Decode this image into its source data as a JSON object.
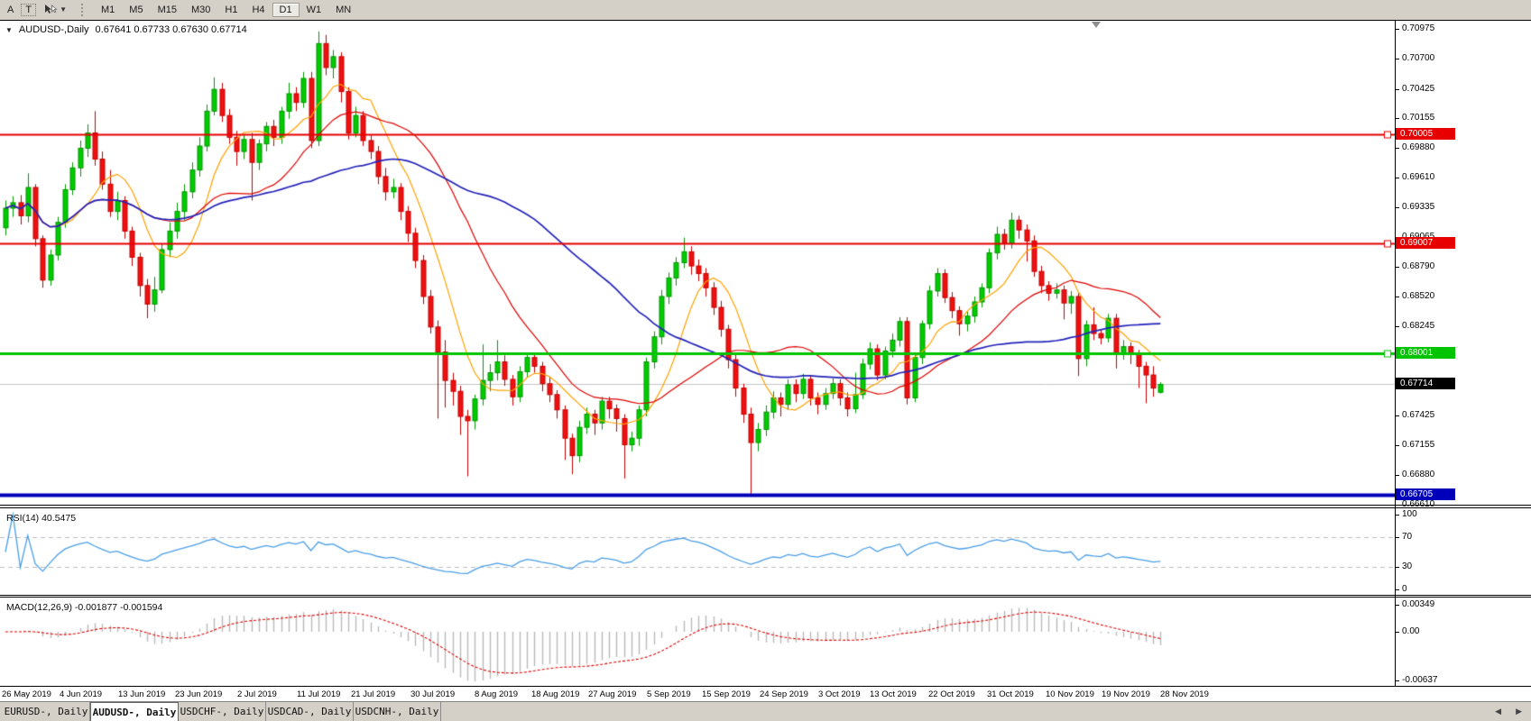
{
  "toolbar": {
    "arrow_tool_label": "A",
    "text_tool_label": "T",
    "timeframes": [
      "M1",
      "M5",
      "M15",
      "M30",
      "H1",
      "H4",
      "D1",
      "W1",
      "MN"
    ],
    "active_timeframe": "D1"
  },
  "chart": {
    "title": "AUDUSD-,Daily",
    "ohlc_text": "0.67641 0.67733 0.67630 0.67714",
    "price_axis_labels": [
      "0.70975",
      "0.70700",
      "0.70425",
      "0.70155",
      "0.69880",
      "0.69610",
      "0.69335",
      "0.69065",
      "0.68790",
      "0.68520",
      "0.68245",
      "0.67975",
      "0.67700",
      "0.67425",
      "0.67155",
      "0.66880",
      "0.66610"
    ],
    "date_labels": [
      "26 May 2019",
      "4 Jun 2019",
      "13 Jun 2019",
      "23 Jun 2019",
      "2 Jul 2019",
      "11 Jul 2019",
      "21 Jul 2019",
      "30 Jul 2019",
      "8 Aug 2019",
      "18 Aug 2019",
      "27 Aug 2019",
      "5 Sep 2019",
      "15 Sep 2019",
      "24 Sep 2019",
      "3 Oct 2019",
      "13 Oct 2019",
      "22 Oct 2019",
      "31 Oct 2019",
      "10 Nov 2019",
      "19 Nov 2019",
      "28 Nov 2019"
    ],
    "price_line_tags": [
      {
        "label": "0.70005",
        "price": 0.70005,
        "color": "#e60000",
        "text_color": "#ffffff",
        "line_width": 2
      },
      {
        "label": "0.69007",
        "price": 0.69007,
        "color": "#e60000",
        "text_color": "#ffffff",
        "line_width": 2
      },
      {
        "label": "0.68001",
        "price": 0.68001,
        "color": "#00c400",
        "text_color": "#ffffff",
        "line_width": 3
      },
      {
        "label": "0.66705",
        "price": 0.66705,
        "color": "#0000bb",
        "text_color": "#ffffff",
        "line_width": 4
      }
    ],
    "current_price_tag": {
      "label": "0.67714",
      "price": 0.67714,
      "color": "#000000",
      "text_color": "#ffffff"
    }
  },
  "rsi_panel": {
    "label": "RSI(14) 40.5475",
    "value": 40.5475,
    "line_color": "#4a9ee8",
    "axis_labels": [
      {
        "label": "100",
        "value": 100
      },
      {
        "label": "70",
        "value": 70
      },
      {
        "label": "30",
        "value": 30
      },
      {
        "label": "0",
        "value": 0
      }
    ]
  },
  "macd_panel": {
    "label": "MACD(12,26,9) -0.001877 -0.001594",
    "values": [
      -0.001877,
      -0.001594
    ],
    "histogram_color": "#b9b9b9",
    "signal_color": "#e00000",
    "axis_labels": [
      {
        "label": "0.00349",
        "value": 0.00349
      },
      {
        "label": "0.00",
        "value": 0
      },
      {
        "label": "-0.00637",
        "value": -0.00637
      }
    ]
  },
  "tabs": [
    {
      "label": "EURUSD-, Daily",
      "active": false
    },
    {
      "label": "AUDUSD-, Daily",
      "active": true
    },
    {
      "label": "USDCHF-, Daily",
      "active": false
    },
    {
      "label": "USDCAD-, Daily",
      "active": false
    },
    {
      "label": "USDCNH-, Daily",
      "active": false
    }
  ],
  "tab_arrows": {
    "left": "◀",
    "right": "▶"
  },
  "chart_data": {
    "type": "candlestick",
    "symbol": "AUDUSD",
    "timeframe": "Daily",
    "title": "AUDUSD-,Daily",
    "last_bar_ohlc": [
      0.67641,
      0.67733,
      0.6763,
      0.67714
    ],
    "ylim": [
      0.6661,
      0.70975
    ],
    "x_tick_dates": [
      "26 May 2019",
      "4 Jun 2019",
      "13 Jun 2019",
      "23 Jun 2019",
      "2 Jul 2019",
      "11 Jul 2019",
      "21 Jul 2019",
      "30 Jul 2019",
      "8 Aug 2019",
      "18 Aug 2019",
      "27 Aug 2019",
      "5 Sep 2019",
      "15 Sep 2019",
      "24 Sep 2019",
      "3 Oct 2019",
      "13 Oct 2019",
      "22 Oct 2019",
      "31 Oct 2019",
      "10 Nov 2019",
      "19 Nov 2019",
      "28 Nov 2019"
    ],
    "horizontal_levels": [
      0.70005,
      0.69007,
      0.68001,
      0.66705
    ],
    "current_price": 0.67714,
    "bull_color": "#00cc00",
    "bear_color": "#ee1111",
    "overlays": [
      {
        "name": "fast-ma",
        "period": 8,
        "color": "#ffa200"
      },
      {
        "name": "mid-ma",
        "period": 21,
        "color": "#e00000"
      },
      {
        "name": "slow-ma",
        "period": 45,
        "color": "#2323bb"
      }
    ],
    "indicators": [
      {
        "name": "RSI",
        "period": 14,
        "display_value": 40.5475,
        "levels": [
          30,
          70
        ],
        "range": [
          0,
          100
        ]
      },
      {
        "name": "MACD",
        "fast": 12,
        "slow": 26,
        "signal": 9,
        "display_values": [
          -0.001877,
          -0.001594
        ],
        "range": [
          -0.00637,
          0.00349
        ]
      }
    ],
    "candles": [
      [
        0.6915,
        0.694,
        0.6908,
        0.6933
      ],
      [
        0.6933,
        0.6944,
        0.6925,
        0.6938
      ],
      [
        0.6938,
        0.6945,
        0.6918,
        0.6926
      ],
      [
        0.6926,
        0.6965,
        0.692,
        0.6952
      ],
      [
        0.6952,
        0.6955,
        0.6898,
        0.6905
      ],
      [
        0.6905,
        0.6908,
        0.686,
        0.6867
      ],
      [
        0.6867,
        0.6895,
        0.6862,
        0.689
      ],
      [
        0.689,
        0.6925,
        0.6885,
        0.692
      ],
      [
        0.692,
        0.6955,
        0.6915,
        0.695
      ],
      [
        0.695,
        0.6975,
        0.6945,
        0.697
      ],
      [
        0.697,
        0.6995,
        0.6962,
        0.6988
      ],
      [
        0.6988,
        0.701,
        0.698,
        0.7002
      ],
      [
        0.7002,
        0.7022,
        0.6972,
        0.6978
      ],
      [
        0.6978,
        0.6985,
        0.695,
        0.6955
      ],
      [
        0.6955,
        0.6968,
        0.6925,
        0.693
      ],
      [
        0.693,
        0.6948,
        0.6922,
        0.694
      ],
      [
        0.694,
        0.6944,
        0.6905,
        0.6912
      ],
      [
        0.6912,
        0.6916,
        0.688,
        0.6888
      ],
      [
        0.6888,
        0.6892,
        0.6852,
        0.6862
      ],
      [
        0.6862,
        0.6868,
        0.6832,
        0.6845
      ],
      [
        0.6845,
        0.687,
        0.6838,
        0.6858
      ],
      [
        0.6858,
        0.69,
        0.6855,
        0.6895
      ],
      [
        0.6895,
        0.692,
        0.6888,
        0.6912
      ],
      [
        0.6912,
        0.6938,
        0.6905,
        0.693
      ],
      [
        0.693,
        0.6955,
        0.6922,
        0.6948
      ],
      [
        0.6948,
        0.6975,
        0.6942,
        0.6968
      ],
      [
        0.6968,
        0.6998,
        0.6962,
        0.699
      ],
      [
        0.699,
        0.7028,
        0.6985,
        0.7022
      ],
      [
        0.7022,
        0.7053,
        0.7018,
        0.7042
      ],
      [
        0.7042,
        0.7048,
        0.7012,
        0.7018
      ],
      [
        0.7018,
        0.7024,
        0.6992,
        0.6998
      ],
      [
        0.6998,
        0.7004,
        0.6972,
        0.6985
      ],
      [
        0.6985,
        0.7,
        0.6978,
        0.6996
      ],
      [
        0.6996,
        0.7002,
        0.694,
        0.6975
      ],
      [
        0.6975,
        0.6996,
        0.6968,
        0.6992
      ],
      [
        0.6992,
        0.7012,
        0.6985,
        0.7008
      ],
      [
        0.7008,
        0.7014,
        0.699,
        0.6998
      ],
      [
        0.6998,
        0.7026,
        0.6992,
        0.7022
      ],
      [
        0.7022,
        0.7048,
        0.7015,
        0.7038
      ],
      [
        0.7038,
        0.7044,
        0.7022,
        0.703
      ],
      [
        0.703,
        0.7058,
        0.7025,
        0.7052
      ],
      [
        0.7052,
        0.7058,
        0.6988,
        0.6995
      ],
      [
        0.6995,
        0.7095,
        0.699,
        0.7084
      ],
      [
        0.7084,
        0.7092,
        0.7055,
        0.7062
      ],
      [
        0.7062,
        0.7078,
        0.7052,
        0.7072
      ],
      [
        0.7072,
        0.7076,
        0.703,
        0.704
      ],
      [
        0.704,
        0.7044,
        0.6996,
        0.7002
      ],
      [
        0.7002,
        0.7026,
        0.6998,
        0.7018
      ],
      [
        0.7018,
        0.7022,
        0.699,
        0.6995
      ],
      [
        0.6995,
        0.7,
        0.6978,
        0.6985
      ],
      [
        0.6985,
        0.699,
        0.6955,
        0.6962
      ],
      [
        0.6962,
        0.697,
        0.694,
        0.6948
      ],
      [
        0.6948,
        0.696,
        0.6942,
        0.6952
      ],
      [
        0.6952,
        0.6956,
        0.6922,
        0.693
      ],
      [
        0.693,
        0.6935,
        0.6902,
        0.691
      ],
      [
        0.691,
        0.6915,
        0.6878,
        0.6885
      ],
      [
        0.6885,
        0.689,
        0.6845,
        0.6852
      ],
      [
        0.6852,
        0.6858,
        0.6818,
        0.6824
      ],
      [
        0.6824,
        0.683,
        0.674,
        0.6801
      ],
      [
        0.6801,
        0.6812,
        0.675,
        0.6775
      ],
      [
        0.6775,
        0.6782,
        0.6752,
        0.6765
      ],
      [
        0.6765,
        0.677,
        0.6725,
        0.6742
      ],
      [
        0.6742,
        0.6748,
        0.6687,
        0.6738
      ],
      [
        0.6738,
        0.6762,
        0.673,
        0.6758
      ],
      [
        0.6758,
        0.6808,
        0.6752,
        0.6775
      ],
      [
        0.6775,
        0.679,
        0.6765,
        0.6782
      ],
      [
        0.6782,
        0.6812,
        0.6775,
        0.6792
      ],
      [
        0.6792,
        0.6798,
        0.677,
        0.6776
      ],
      [
        0.6776,
        0.678,
        0.6752,
        0.676
      ],
      [
        0.676,
        0.6788,
        0.6755,
        0.6783
      ],
      [
        0.6783,
        0.68,
        0.6778,
        0.6796
      ],
      [
        0.6796,
        0.68,
        0.6782,
        0.6788
      ],
      [
        0.6788,
        0.6792,
        0.6765,
        0.6772
      ],
      [
        0.6772,
        0.6778,
        0.6755,
        0.6762
      ],
      [
        0.6762,
        0.6766,
        0.674,
        0.6748
      ],
      [
        0.6748,
        0.6752,
        0.6702,
        0.6722
      ],
      [
        0.6722,
        0.6726,
        0.6689,
        0.6706
      ],
      [
        0.6706,
        0.6738,
        0.67,
        0.6732
      ],
      [
        0.6732,
        0.675,
        0.6726,
        0.6744
      ],
      [
        0.6744,
        0.6748,
        0.6725,
        0.6736
      ],
      [
        0.6736,
        0.676,
        0.673,
        0.6756
      ],
      [
        0.6756,
        0.676,
        0.674,
        0.6749
      ],
      [
        0.6749,
        0.6753,
        0.6728,
        0.674
      ],
      [
        0.674,
        0.6744,
        0.6685,
        0.6716
      ],
      [
        0.6716,
        0.6728,
        0.671,
        0.6722
      ],
      [
        0.6722,
        0.6752,
        0.6715,
        0.6748
      ],
      [
        0.6748,
        0.6796,
        0.6742,
        0.6792
      ],
      [
        0.6792,
        0.682,
        0.6786,
        0.6815
      ],
      [
        0.6815,
        0.6858,
        0.6808,
        0.6852
      ],
      [
        0.6852,
        0.6874,
        0.6845,
        0.6869
      ],
      [
        0.6869,
        0.6888,
        0.6862,
        0.6883
      ],
      [
        0.6883,
        0.6906,
        0.6878,
        0.6893
      ],
      [
        0.6893,
        0.6898,
        0.6872,
        0.688
      ],
      [
        0.688,
        0.6886,
        0.6866,
        0.6873
      ],
      [
        0.6873,
        0.6878,
        0.6852,
        0.686
      ],
      [
        0.686,
        0.6865,
        0.6835,
        0.6842
      ],
      [
        0.6842,
        0.6848,
        0.6815,
        0.6822
      ],
      [
        0.6822,
        0.6826,
        0.6786,
        0.6794
      ],
      [
        0.6794,
        0.68,
        0.676,
        0.6768
      ],
      [
        0.6768,
        0.6772,
        0.6736,
        0.6744
      ],
      [
        0.6744,
        0.675,
        0.667,
        0.6718
      ],
      [
        0.6718,
        0.6736,
        0.671,
        0.673
      ],
      [
        0.673,
        0.6752,
        0.6724,
        0.6746
      ],
      [
        0.6746,
        0.6765,
        0.674,
        0.6759
      ],
      [
        0.6759,
        0.6764,
        0.6742,
        0.6753
      ],
      [
        0.6753,
        0.6776,
        0.6748,
        0.6771
      ],
      [
        0.6771,
        0.6776,
        0.6755,
        0.6763
      ],
      [
        0.6763,
        0.6781,
        0.6758,
        0.6776
      ],
      [
        0.6776,
        0.678,
        0.6752,
        0.6759
      ],
      [
        0.6759,
        0.6764,
        0.6744,
        0.6753
      ],
      [
        0.6753,
        0.6768,
        0.6748,
        0.6763
      ],
      [
        0.6763,
        0.6777,
        0.6758,
        0.6772
      ],
      [
        0.6772,
        0.6776,
        0.6752,
        0.6759
      ],
      [
        0.6759,
        0.6764,
        0.6742,
        0.6749
      ],
      [
        0.6749,
        0.6782,
        0.6745,
        0.6762
      ],
      [
        0.6762,
        0.6795,
        0.6758,
        0.679
      ],
      [
        0.679,
        0.681,
        0.6785,
        0.6804
      ],
      [
        0.6804,
        0.6808,
        0.6775,
        0.678
      ],
      [
        0.678,
        0.6806,
        0.6776,
        0.6802
      ],
      [
        0.6802,
        0.6818,
        0.6796,
        0.6812
      ],
      [
        0.6812,
        0.6833,
        0.6806,
        0.6829
      ],
      [
        0.6829,
        0.6833,
        0.6753,
        0.6759
      ],
      [
        0.6759,
        0.68,
        0.6755,
        0.6796
      ],
      [
        0.6796,
        0.683,
        0.679,
        0.6827
      ],
      [
        0.6827,
        0.6862,
        0.6822,
        0.6857
      ],
      [
        0.6857,
        0.6878,
        0.6852,
        0.6873
      ],
      [
        0.6873,
        0.6877,
        0.6846,
        0.6851
      ],
      [
        0.6851,
        0.6856,
        0.6832,
        0.6839
      ],
      [
        0.6839,
        0.6843,
        0.6816,
        0.6827
      ],
      [
        0.6827,
        0.6838,
        0.682,
        0.6834
      ],
      [
        0.6834,
        0.6852,
        0.6828,
        0.6847
      ],
      [
        0.6847,
        0.6864,
        0.6842,
        0.686
      ],
      [
        0.686,
        0.6896,
        0.6855,
        0.6892
      ],
      [
        0.6892,
        0.6916,
        0.6886,
        0.6909
      ],
      [
        0.6909,
        0.6914,
        0.6895,
        0.6901
      ],
      [
        0.6901,
        0.6929,
        0.6896,
        0.6922
      ],
      [
        0.6922,
        0.6926,
        0.6905,
        0.6913
      ],
      [
        0.6913,
        0.6918,
        0.6884,
        0.6903
      ],
      [
        0.6903,
        0.6908,
        0.687,
        0.6875
      ],
      [
        0.6875,
        0.688,
        0.6855,
        0.6862
      ],
      [
        0.6862,
        0.6866,
        0.6848,
        0.6855
      ],
      [
        0.6855,
        0.6864,
        0.685,
        0.6858
      ],
      [
        0.6858,
        0.6862,
        0.6831,
        0.6846
      ],
      [
        0.6846,
        0.6857,
        0.6836,
        0.6852
      ],
      [
        0.6852,
        0.6856,
        0.6779,
        0.6795
      ],
      [
        0.6795,
        0.683,
        0.6788,
        0.6826
      ],
      [
        0.6826,
        0.6842,
        0.6812,
        0.6818
      ],
      [
        0.6818,
        0.6822,
        0.6808,
        0.6814
      ],
      [
        0.6814,
        0.6836,
        0.681,
        0.6832
      ],
      [
        0.6832,
        0.6836,
        0.6786,
        0.68
      ],
      [
        0.68,
        0.6812,
        0.6794,
        0.6806
      ],
      [
        0.6806,
        0.681,
        0.679,
        0.6799
      ],
      [
        0.6799,
        0.6803,
        0.6768,
        0.6788
      ],
      [
        0.6788,
        0.6792,
        0.6754,
        0.678
      ],
      [
        0.678,
        0.6788,
        0.676,
        0.6768
      ],
      [
        0.67641,
        0.67733,
        0.6763,
        0.67714
      ]
    ]
  }
}
